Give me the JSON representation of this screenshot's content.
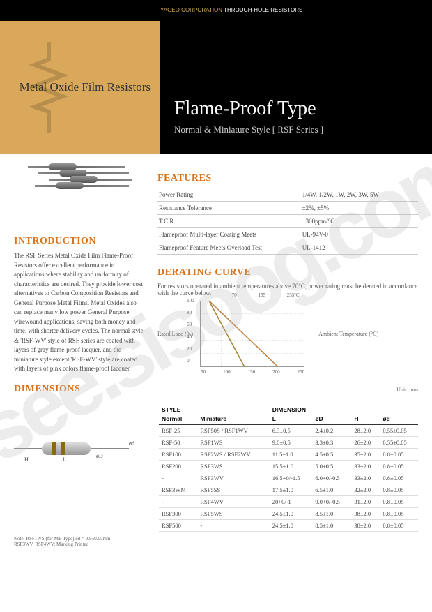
{
  "header": {
    "company": "YAGEO CORPORATION",
    "product": "THROUGH-HOLE RESISTORS"
  },
  "hero": {
    "left_title": "Metal Oxide Film Resistors",
    "title": "Flame-Proof Type",
    "subtitle": "Normal & Miniature Style [ RSF Series ]"
  },
  "sections": {
    "intro": "INTRODUCTION",
    "features": "FEATURES",
    "derating": "DERATING CURVE",
    "dimensions": "DIMENSIONS"
  },
  "intro_text": "The RSF Series Metal Oxide Film Flame-Proof Resistors offer excellent performance in applications where stability and uniformity of characteristics are desired. They provide lower cost alternatives to Carbon Composition Resistors and General Purpose Metal Films. Metal Oxides also can replace many low power General Purpose wirewound applications, saving both money and time, with shorter delivery cycles. The normal style & 'RSF-WV' style of RSF series are coated with layers of gray flame-proof lacquer, and the miniature style except 'RSF-WV' style are coated with layers of pink colors flame-proof lacquer.",
  "features": [
    {
      "k": "Power Rating",
      "v": "1/4W, 1/2W, 1W, 2W, 3W, 5W"
    },
    {
      "k": "Resistance Tolerance",
      "v": "±2%, ±5%"
    },
    {
      "k": "T.C.R.",
      "v": "±300ppm/°C"
    },
    {
      "k": "Flameproof Multi-layer Coating Meets",
      "v": "UL-94V-0"
    },
    {
      "k": "Flameproof Feature Meets Overload Test",
      "v": "UL-1412"
    }
  ],
  "derating": {
    "text": "For resistors operated in ambient temperatures above 70°C, power rating must be derated in accordance with the curve below.",
    "ylabel": "Rated Load (%)",
    "xlabel": "Ambient Temperature (°C)",
    "yticks": [
      "100",
      "80",
      "60",
      "40",
      "20",
      "0"
    ],
    "xticks": [
      "50",
      "100",
      "150",
      "200",
      "250"
    ],
    "xheader": [
      "70",
      "155",
      "235°C"
    ],
    "line1_color": "#a08030",
    "line2_color": "#c08040"
  },
  "dimensions": {
    "unit": "Unit: mm",
    "headers": {
      "style": "STYLE",
      "normal": "Normal",
      "mini": "Miniature",
      "dim": "DIMENSION",
      "L": "L",
      "oD": "øD",
      "H": "H",
      "od": "ød"
    },
    "labels": {
      "H": "H",
      "L": "L",
      "oD": "øD",
      "od": "ød"
    },
    "rows": [
      {
        "n": "RSF-25",
        "m": "RSF50S / RSF1WV",
        "L": "6.3±0.5",
        "oD": "2.4±0.2",
        "H": "28±2.0",
        "od": "0.55±0.05"
      },
      {
        "n": "RSF-50",
        "m": "RSF1WS",
        "L": "9.0±0.5",
        "oD": "3.3±0.3",
        "H": "26±2.0",
        "od": "0.55±0.05"
      },
      {
        "n": "RSF100",
        "m": "RSF2WS / RSF2WV",
        "L": "11.5±1.0",
        "oD": "4.5±0.5",
        "H": "35±2.0",
        "od": "0.8±0.05"
      },
      {
        "n": "RSF200",
        "m": "RSF3WS",
        "L": "15.5±1.0",
        "oD": "5.0±0.5",
        "H": "33±2.0",
        "od": "0.8±0.05"
      },
      {
        "n": "-",
        "m": "RSF3WV",
        "L": "16.5+0/-1.5",
        "oD": "6.0+0/-0.5",
        "H": "33±2.0",
        "od": "0.8±0.05"
      },
      {
        "n": "RSF3WM",
        "m": "RSF5SS",
        "L": "17.5±1.0",
        "oD": "6.5±1.0",
        "H": "32±2.0",
        "od": "0.8±0.05"
      },
      {
        "n": "-",
        "m": "RSF4WV",
        "L": "20+0/-1",
        "oD": "9.0+0/-0.5",
        "H": "31±2.0",
        "od": "0.8±0.05"
      },
      {
        "n": "RSF300",
        "m": "RSF5WS",
        "L": "24.5±1.0",
        "oD": "8.5±1.0",
        "H": "38±2.0",
        "od": "0.8±0.05"
      },
      {
        "n": "RSF500",
        "m": "-",
        "L": "24.5±1.0",
        "oD": "8.5±1.0",
        "H": "38±2.0",
        "od": "0.8±0.05"
      }
    ]
  },
  "notes": [
    "Note: RSF1WS (for MB Type) ød = 0.8±0.05mm",
    "RSF3WV, RSF4WV: Marking Printed"
  ],
  "watermark": "isee.sisoog.com",
  "colors": {
    "accent": "#d9a85a",
    "heading": "#d9731a"
  }
}
